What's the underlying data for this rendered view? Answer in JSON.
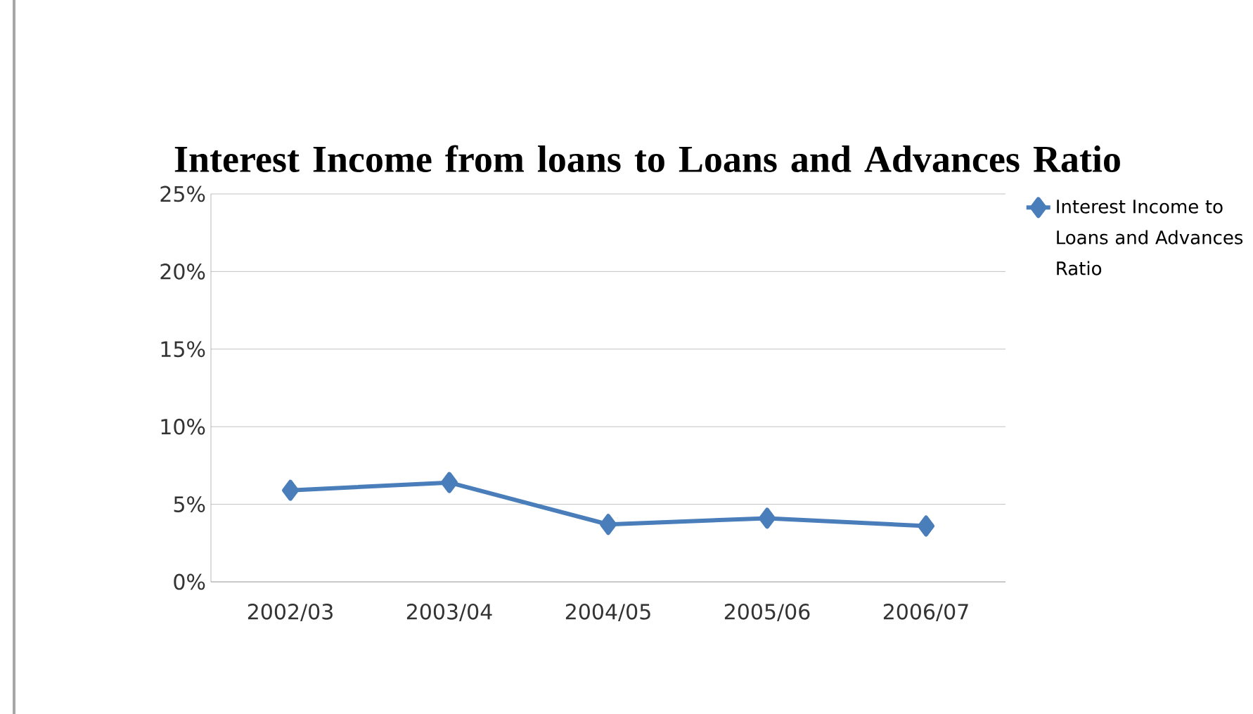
{
  "chart_data": {
    "type": "line",
    "title": "Interest Income from loans to Loans and Advances Ratio",
    "categories": [
      "2002/03",
      "2003/04",
      "2004/05",
      "2005/06",
      "2006/07"
    ],
    "series": [
      {
        "name": "Interest Income to Loans and Advances Ratio",
        "color": "#4a7ebb",
        "values": [
          5.9,
          6.4,
          3.7,
          4.1,
          3.6
        ]
      }
    ],
    "ylim": [
      0,
      25
    ],
    "yticks": [
      {
        "value": 0,
        "label": "0%"
      },
      {
        "value": 5,
        "label": "5%"
      },
      {
        "value": 10,
        "label": "10%"
      },
      {
        "value": 15,
        "label": "15%"
      },
      {
        "value": 20,
        "label": "20%"
      },
      {
        "value": 25,
        "label": "25%"
      }
    ],
    "grid": "y",
    "legend": "top right",
    "marker": "diamond",
    "line_style": "solid"
  }
}
